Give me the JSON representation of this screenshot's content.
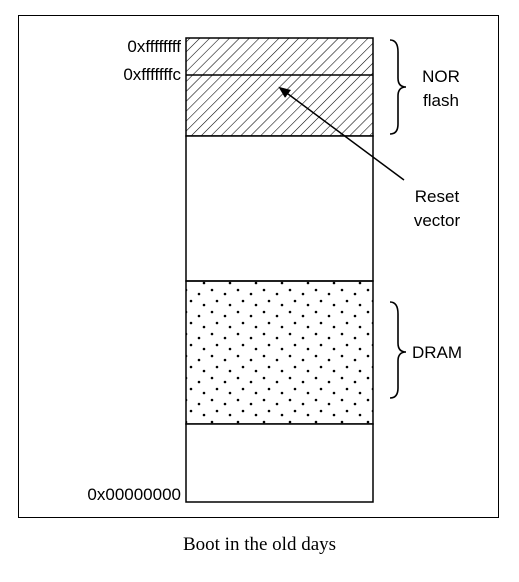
{
  "addresses": {
    "top": "0xffffffff",
    "reset": "0xfffffffc",
    "bottom": "0x00000000"
  },
  "regions": {
    "nor_line1": "NOR",
    "nor_line2": "flash",
    "dram": "DRAM"
  },
  "reset_vector": {
    "line1": "Reset",
    "line2": "vector"
  },
  "caption": "Boot in the old days"
}
